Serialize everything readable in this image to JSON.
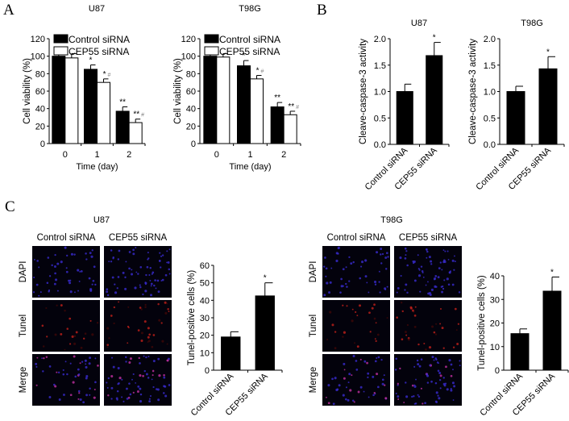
{
  "panel_labels": {
    "a": "A",
    "b": "B",
    "c": "C"
  },
  "chart_data": [
    {
      "id": "A-U87",
      "type": "bar",
      "title": "U87",
      "xlabel": "Time (day)",
      "ylabel": "Cell viability (%)",
      "categories": [
        "0",
        "1",
        "2"
      ],
      "ylim": [
        0,
        120
      ],
      "yticks": [
        0,
        20,
        40,
        60,
        80,
        100,
        120
      ],
      "legend": "top-left",
      "series": [
        {
          "name": "Control siRNA",
          "color": "#000000",
          "values": [
            100,
            85,
            37
          ],
          "errors": [
            4,
            5,
            5
          ],
          "annotations": [
            "",
            "*",
            "**"
          ]
        },
        {
          "name": "CEP55 siRNA",
          "color": "#ffffff",
          "values": [
            98,
            70,
            24
          ],
          "errors": [
            5,
            4,
            4
          ],
          "annotations": [
            "",
            "*#",
            "**#"
          ]
        }
      ]
    },
    {
      "id": "A-T98G",
      "type": "bar",
      "title": "T98G",
      "xlabel": "Time (day)",
      "ylabel": "Cell viability (%)",
      "categories": [
        "0",
        "1",
        "2"
      ],
      "ylim": [
        0,
        120
      ],
      "yticks": [
        0,
        20,
        40,
        60,
        80,
        100,
        120
      ],
      "legend": "top-left",
      "series": [
        {
          "name": "Control siRNA",
          "color": "#000000",
          "values": [
            100,
            89,
            42
          ],
          "errors": [
            6,
            6,
            5
          ],
          "annotations": [
            "",
            "*",
            "**"
          ]
        },
        {
          "name": "CEP55 siRNA",
          "color": "#ffffff",
          "values": [
            99,
            74,
            33
          ],
          "errors": [
            4,
            4,
            4
          ],
          "annotations": [
            "",
            "*#",
            "**#"
          ]
        }
      ]
    },
    {
      "id": "B-U87",
      "type": "bar",
      "title": "U87",
      "xlabel": "",
      "ylabel": "Cleave-caspase-3 activity",
      "categories": [
        "Control siRNA",
        "CEP55 siRNA"
      ],
      "ylim": [
        0,
        2
      ],
      "yticks": [
        "0.0",
        "0.5",
        "1.0",
        "1.5",
        "2.0"
      ],
      "series": [
        {
          "name": "",
          "color": "#000000",
          "values": [
            1.0,
            1.68
          ],
          "errors": [
            0.14,
            0.25
          ],
          "annotations": [
            "",
            "*"
          ]
        }
      ]
    },
    {
      "id": "B-T98G",
      "type": "bar",
      "title": "T98G",
      "xlabel": "",
      "ylabel": "Cleave-caspase-3 activity",
      "categories": [
        "Control siRNA",
        "CEP55 siRNA"
      ],
      "ylim": [
        0,
        2
      ],
      "yticks": [
        "0.0",
        "0.5",
        "1.0",
        "1.5",
        "2.0"
      ],
      "series": [
        {
          "name": "",
          "color": "#000000",
          "values": [
            1.0,
            1.43
          ],
          "errors": [
            0.1,
            0.23
          ],
          "annotations": [
            "",
            "*"
          ]
        }
      ]
    },
    {
      "id": "C-U87",
      "type": "bar",
      "title": "",
      "xlabel": "",
      "ylabel": "Tunel-positive cells (%)",
      "categories": [
        "Control siRNA",
        "CEP55 siRNA"
      ],
      "ylim": [
        0,
        60
      ],
      "yticks": [
        0,
        10,
        20,
        30,
        40,
        50,
        60
      ],
      "series": [
        {
          "name": "",
          "color": "#000000",
          "values": [
            19,
            42.5
          ],
          "errors": [
            3,
            7.5
          ],
          "annotations": [
            "",
            "*"
          ]
        }
      ]
    },
    {
      "id": "C-T98G",
      "type": "bar",
      "title": "",
      "xlabel": "",
      "ylabel": "Tunel-positive cells (%)",
      "categories": [
        "Control siRNA",
        "CEP55 siRNA"
      ],
      "ylim": [
        0,
        40
      ],
      "yticks": [
        0,
        10,
        20,
        30,
        40
      ],
      "series": [
        {
          "name": "",
          "color": "#000000",
          "values": [
            15.5,
            33.5
          ],
          "errors": [
            2,
            6
          ],
          "annotations": [
            "",
            "*"
          ]
        }
      ]
    }
  ],
  "micrographs": [
    {
      "title": "U87",
      "columns": [
        "Control siRNA",
        "CEP55 siRNA"
      ],
      "rows": [
        "DAPI",
        "Tunel",
        "Merge"
      ]
    },
    {
      "title": "T98G",
      "columns": [
        "Control siRNA",
        "CEP55 siRNA"
      ],
      "rows": [
        "DAPI",
        "Tunel",
        "Merge"
      ]
    }
  ]
}
